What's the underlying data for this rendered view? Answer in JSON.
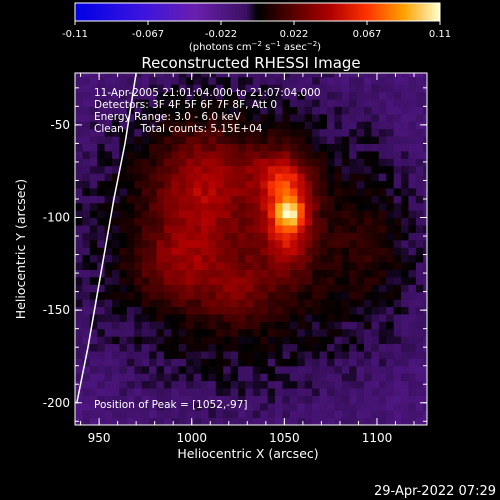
{
  "chart_data": {
    "type": "heatmap",
    "title": "Reconstructed RHESSI Image",
    "xlabel": "Heliocentric X (arcsec)",
    "ylabel": "Heliocentric Y (arcsec)",
    "xlim": [
      937,
      1127
    ],
    "ylim": [
      -212,
      -22
    ],
    "xticks": [
      950,
      1000,
      1050,
      1100
    ],
    "yticks": [
      -50,
      -100,
      -150,
      -200
    ],
    "colorbar": {
      "ticks": [
        "-0.11",
        "-0.067",
        "-0.022",
        "0.022",
        "0.067",
        "0.11"
      ],
      "min": -0.11,
      "max": 0.11,
      "unit_prefix": "(photons cm",
      "unit_exp1": "−2",
      "unit_mid": " s",
      "unit_exp2": "−1",
      "unit_mid2": " asec",
      "unit_exp3": "−2",
      "unit_suffix": ")"
    },
    "annotations": [
      "11-Apr-2005 21:01:04.000 to 21:07:04.000",
      "Detectors: 3F 4F 5F 6F 7F 8F, Att 0",
      "Energy Range: 3.0 - 6.0 keV",
      "Clean     Total counts: 5.15E+04"
    ],
    "peak_text": "Position of Peak = [1052,-97]",
    "peak": [
      1052,
      -97
    ],
    "peak_value": 0.11,
    "sources": [
      {
        "x": 1052,
        "y": -97,
        "amp": 0.066,
        "sx": 9,
        "sy": 18
      },
      {
        "x": 1043,
        "y": -75,
        "amp": 0.022,
        "sx": 11,
        "sy": 9
      },
      {
        "x": 1005,
        "y": -82,
        "amp": 0.034,
        "sx": 18,
        "sy": 22
      },
      {
        "x": 992,
        "y": -125,
        "amp": 0.025,
        "sx": 16,
        "sy": 14
      },
      {
        "x": 1025,
        "y": -140,
        "amp": 0.019,
        "sx": 14,
        "sy": 13
      },
      {
        "x": 1098,
        "y": -118,
        "amp": 0.011,
        "sx": 16,
        "sy": 26
      },
      {
        "x": 1025,
        "y": -110,
        "amp": 0.032,
        "sx": 62,
        "sy": 58
      }
    ],
    "limb_curve": [
      [
        938,
        -200
      ],
      [
        944,
        -170
      ],
      [
        951,
        -130
      ],
      [
        958,
        -90
      ],
      [
        964,
        -60
      ],
      [
        970,
        -22
      ]
    ],
    "grid": false
  },
  "timestamp": "29-Apr-2022 07:29"
}
